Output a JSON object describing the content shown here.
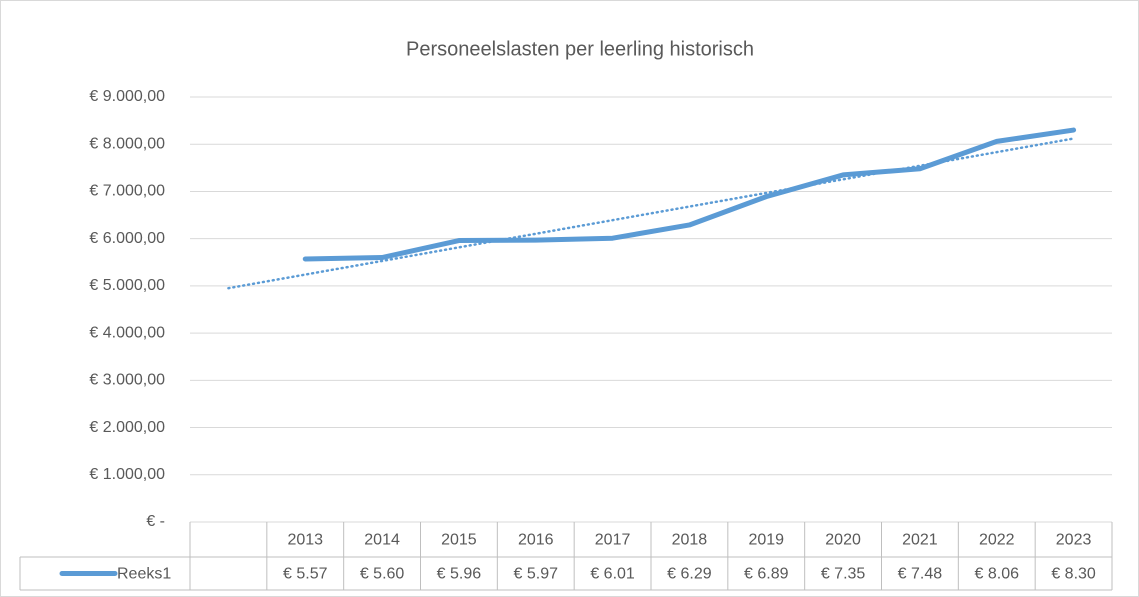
{
  "chart_data": {
    "type": "line",
    "title": "Personeelslasten per leerling historisch",
    "categories": [
      null,
      "2013",
      "2014",
      "2015",
      "2016",
      "2017",
      "2018",
      "2019",
      "2020",
      "2021",
      "2022",
      "2023"
    ],
    "series": [
      {
        "name": "Reeks1",
        "color": "#5b9bd5",
        "values": [
          null,
          5570,
          5600,
          5960,
          5970,
          6010,
          6290,
          6890,
          7350,
          7480,
          8060,
          8300
        ],
        "value_labels": [
          null,
          "€ 5.57",
          "€ 5.60",
          "€ 5.96",
          "€ 5.97",
          "€ 6.01",
          "€ 6.29",
          "€ 6.89",
          "€ 7.35",
          "€ 7.48",
          "€ 8.06",
          "€ 8.30"
        ]
      }
    ],
    "trendline": "linear",
    "ylim": [
      0,
      9000
    ],
    "yticks": [
      {
        "value": 0,
        "label": "€ -"
      },
      {
        "value": 1000,
        "label": "€ 1.000,00"
      },
      {
        "value": 2000,
        "label": "€ 2.000,00"
      },
      {
        "value": 3000,
        "label": "€ 3.000,00"
      },
      {
        "value": 4000,
        "label": "€ 4.000,00"
      },
      {
        "value": 5000,
        "label": "€ 5.000,00"
      },
      {
        "value": 6000,
        "label": "€ 6.000,00"
      },
      {
        "value": 7000,
        "label": "€ 7.000,00"
      },
      {
        "value": 8000,
        "label": "€ 8.000,00"
      },
      {
        "value": 9000,
        "label": "€ 9.000,00"
      }
    ],
    "grid": true
  }
}
